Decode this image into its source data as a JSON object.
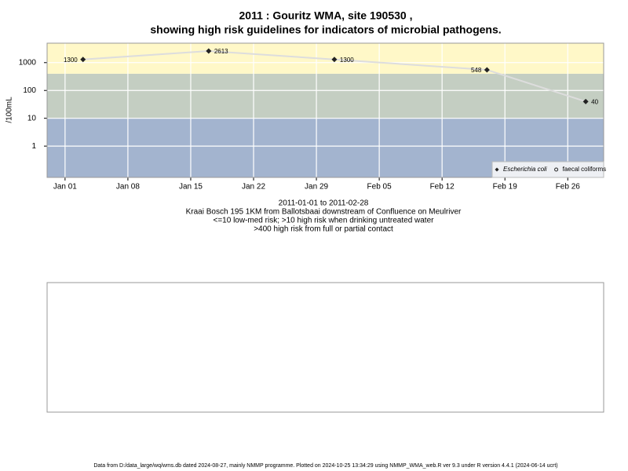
{
  "chart_data": {
    "type": "line",
    "title": "2011 : Gouritz WMA, site 190530 ,",
    "subtitle": "showing high risk guidelines for indicators of microbial pathogens.",
    "y_label": "/100mL",
    "y_log": true,
    "x": [
      "2011-01-03",
      "2011-01-17",
      "2011-01-31",
      "2011-02-17",
      "2011-02-28"
    ],
    "series": [
      {
        "name": "Escherichia coli",
        "color": "#222222",
        "marker": "diamond",
        "values": [
          1300,
          2613,
          1300,
          548,
          40
        ]
      },
      {
        "name": "faecal coliforms",
        "color": "#222222",
        "marker": "circle",
        "values": [
          null,
          null,
          null,
          null,
          null
        ]
      }
    ],
    "line_color": "#dddddd",
    "xlim": [
      "2010-12-30",
      "2011-03-02"
    ],
    "xticks": [
      {
        "value": "2011-01-01",
        "label": "Jan 01"
      },
      {
        "value": "2011-01-08",
        "label": "Jan 08"
      },
      {
        "value": "2011-01-15",
        "label": "Jan 15"
      },
      {
        "value": "2011-01-22",
        "label": "Jan 22"
      },
      {
        "value": "2011-01-29",
        "label": "Jan 29"
      },
      {
        "value": "2011-02-05",
        "label": "Feb 05"
      },
      {
        "value": "2011-02-12",
        "label": "Feb 12"
      },
      {
        "value": "2011-02-19",
        "label": "Feb 19"
      },
      {
        "value": "2011-02-26",
        "label": "Feb 26"
      }
    ],
    "ylim": [
      0.075,
      5000
    ],
    "yticks": [
      1,
      10,
      100,
      1000
    ],
    "grid": true,
    "thresholds": [
      10,
      400
    ],
    "band_colors": [
      "#a3b4cf",
      "#c4cec2",
      "#fff8c8"
    ],
    "legend": "bottom-right",
    "notes": [
      "2011-01-01 to 2011-02-28",
      "Kraai Bosch 195 1KM from Ballotsbaai downstream of Confluence on Meulriver",
      "<=10 low-med risk; >10 high risk when drinking untreated water",
      ">400 high risk from full or partial contact"
    ],
    "footer": "Data from D:/data_large/wq/wms.db dated 2024-08-27, mainly NMMP programme. Plotted on 2024-10-25 13:34:29 using NMMP_WMA_web.R ver 9.3 under R version 4.4.1 (2024-06-14 ucrt)"
  }
}
